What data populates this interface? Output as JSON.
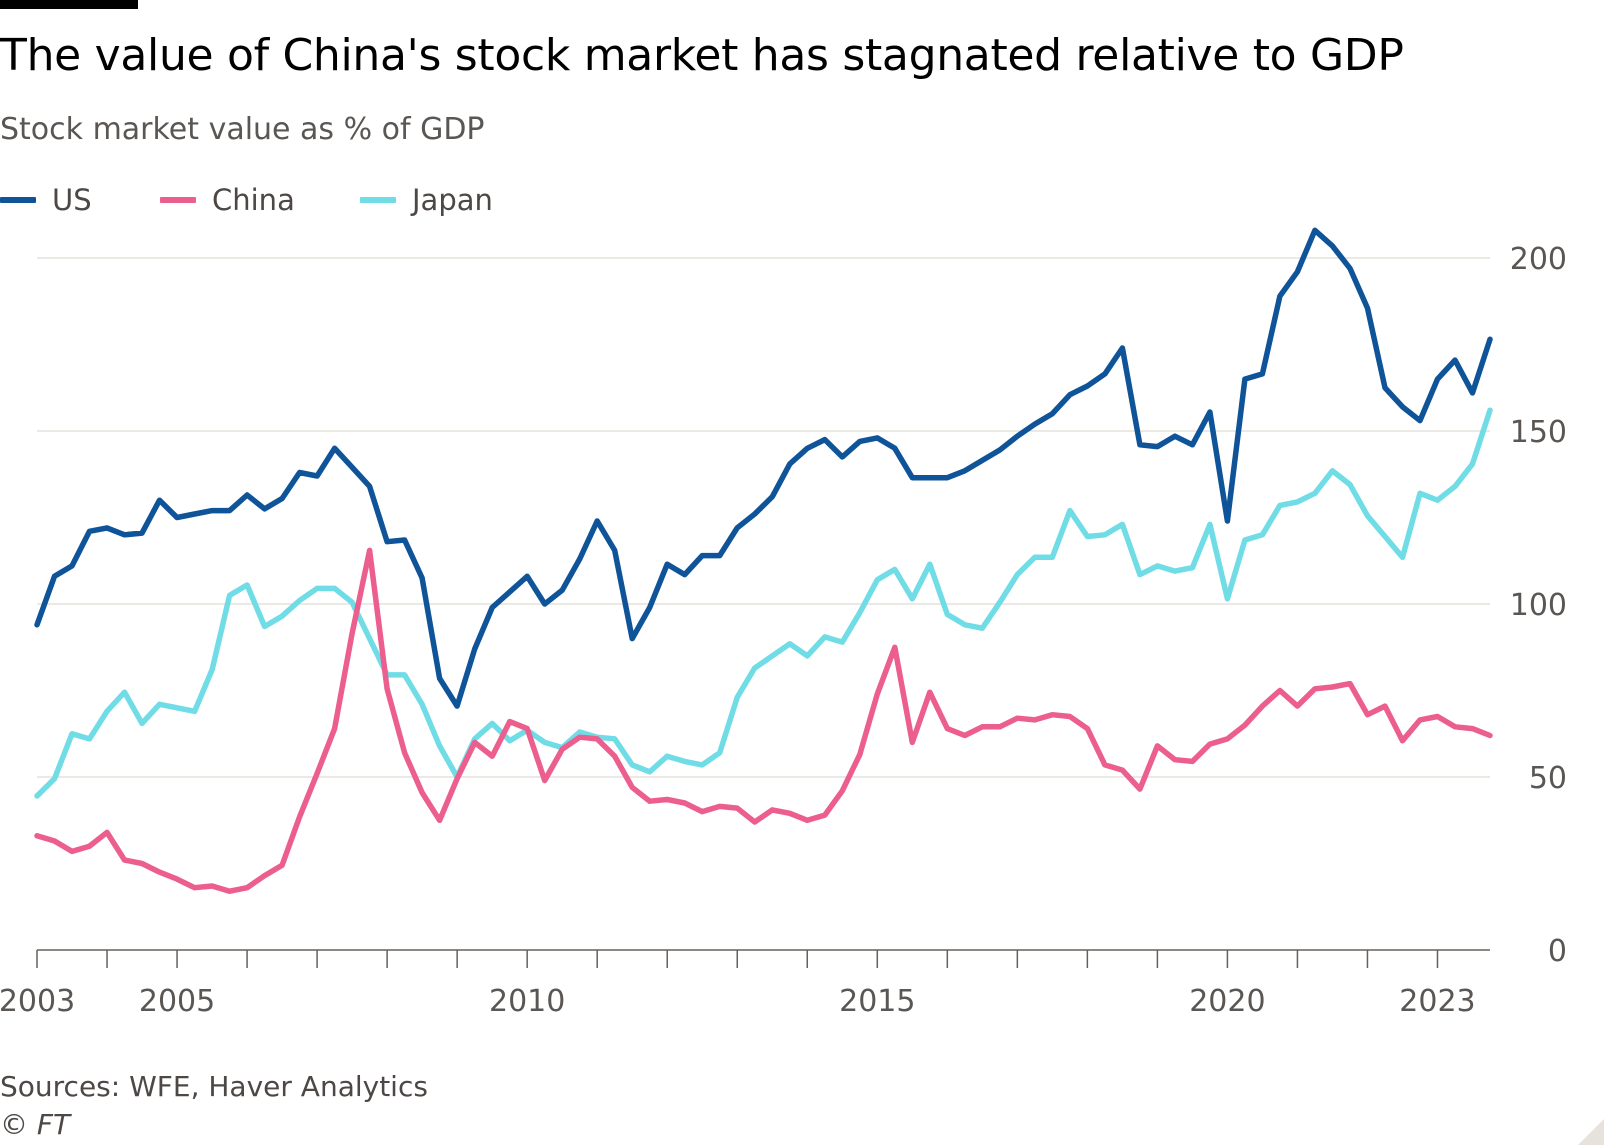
{
  "header": {
    "title": "The value of China's stock market has stagnated relative to GDP",
    "subtitle": "Stock market value as % of GDP"
  },
  "legend": [
    {
      "label": "US",
      "color": "#0f5499"
    },
    {
      "label": "China",
      "color": "#eb5e8d"
    },
    {
      "label": "Japan",
      "color": "#70dce6"
    }
  ],
  "footer": {
    "source": "Sources: WFE, Haver Analytics",
    "copyright": "© FT"
  },
  "chart_data": {
    "type": "line",
    "title": "The value of China's stock market has stagnated relative to GDP",
    "subtitle": "Stock market value as % of GDP",
    "xlabel": "",
    "ylabel": "",
    "x_range": [
      2003,
      2023.75
    ],
    "ylim": [
      0,
      200
    ],
    "y_ticks": [
      0,
      50,
      100,
      150,
      200
    ],
    "x_tick_labels": [
      "2003",
      "2005",
      "2010",
      "2015",
      "2020",
      "2023"
    ],
    "grid": true,
    "y_axis_side": "right",
    "legend_position": "top-left",
    "frequency": "quarterly",
    "start": "2003 Q1",
    "x": [
      "2003 Q1",
      "2003 Q2",
      "2003 Q3",
      "2003 Q4",
      "2004 Q1",
      "2004 Q2",
      "2004 Q3",
      "2004 Q4",
      "2005 Q1",
      "2005 Q2",
      "2005 Q3",
      "2005 Q4",
      "2006 Q1",
      "2006 Q2",
      "2006 Q3",
      "2006 Q4",
      "2007 Q1",
      "2007 Q2",
      "2007 Q3",
      "2007 Q4",
      "2008 Q1",
      "2008 Q2",
      "2008 Q3",
      "2008 Q4",
      "2009 Q1",
      "2009 Q2",
      "2009 Q3",
      "2009 Q4",
      "2010 Q1",
      "2010 Q2",
      "2010 Q3",
      "2010 Q4",
      "2011 Q1",
      "2011 Q2",
      "2011 Q3",
      "2011 Q4",
      "2012 Q1",
      "2012 Q2",
      "2012 Q3",
      "2012 Q4",
      "2013 Q1",
      "2013 Q2",
      "2013 Q3",
      "2013 Q4",
      "2014 Q1",
      "2014 Q2",
      "2014 Q3",
      "2014 Q4",
      "2015 Q1",
      "2015 Q2",
      "2015 Q3",
      "2015 Q4",
      "2016 Q1",
      "2016 Q2",
      "2016 Q3",
      "2016 Q4",
      "2017 Q1",
      "2017 Q2",
      "2017 Q3",
      "2017 Q4",
      "2018 Q1",
      "2018 Q2",
      "2018 Q3",
      "2018 Q4",
      "2019 Q1",
      "2019 Q2",
      "2019 Q3",
      "2019 Q4",
      "2020 Q1",
      "2020 Q2",
      "2020 Q3",
      "2020 Q4",
      "2021 Q1",
      "2021 Q2",
      "2021 Q3",
      "2021 Q4",
      "2022 Q1",
      "2022 Q2",
      "2022 Q3",
      "2022 Q4",
      "2023 Q1",
      "2023 Q2",
      "2023 Q3",
      "2023 Q4"
    ],
    "series": [
      {
        "name": "US",
        "color": "#0f5499",
        "values": [
          94,
          108,
          111,
          121,
          122,
          120,
          120.5,
          130,
          125,
          126,
          127,
          127,
          131.5,
          127.5,
          130.5,
          138,
          137,
          145,
          139.5,
          134,
          118,
          118.5,
          107.5,
          78.5,
          70.5,
          87,
          99,
          103.5,
          108,
          100,
          104,
          113,
          124,
          115.5,
          90,
          99,
          111.5,
          108.5,
          114,
          114,
          122,
          126,
          131,
          140.5,
          145,
          147.5,
          142.5,
          147,
          148,
          145,
          136.5,
          136.5,
          136.5,
          138.5,
          141.5,
          144.5,
          148.5,
          152,
          155,
          160.5,
          163,
          166.5,
          174,
          146,
          145.5,
          148.5,
          146,
          155.5,
          124,
          165,
          166.5,
          189,
          196,
          208,
          203.5,
          197,
          185.5,
          162.5,
          157,
          153,
          165,
          170.5,
          161,
          176.5
        ]
      },
      {
        "name": "China",
        "color": "#eb5e8d",
        "values": [
          33,
          31.5,
          28.5,
          30,
          34,
          26,
          25,
          22.5,
          20.5,
          18,
          18.5,
          17,
          18,
          21.5,
          24.5,
          38.5,
          51,
          64,
          91.5,
          115.5,
          75.5,
          57,
          45.5,
          37.5,
          49.5,
          60,
          56,
          66,
          64,
          49,
          58,
          61.5,
          61,
          56,
          47,
          43,
          43.5,
          42.5,
          40,
          41.5,
          41,
          37,
          40.5,
          39.5,
          37.5,
          39,
          46,
          56.5,
          74,
          87.5,
          60,
          74.5,
          64,
          62,
          64.5,
          64.5,
          67,
          66.5,
          68,
          67.5,
          64,
          53.5,
          52,
          46.5,
          59,
          55,
          54.5,
          59.5,
          61,
          65,
          70.5,
          75,
          70.5,
          75.5,
          76,
          77,
          68,
          70.5,
          60.5,
          66.5,
          67.5,
          64.5,
          64,
          62
        ]
      },
      {
        "name": "Japan",
        "color": "#70dce6",
        "values": [
          44.5,
          49.5,
          62.5,
          61,
          69,
          74.5,
          65.5,
          71,
          70,
          69,
          81,
          102.5,
          105.5,
          93.5,
          96.5,
          101,
          104.5,
          104.5,
          100.5,
          90,
          79.5,
          79.5,
          71,
          59,
          50,
          61,
          65.5,
          60.5,
          63.5,
          60,
          58.5,
          63,
          61.5,
          61,
          53.5,
          51.5,
          56,
          54.5,
          53.5,
          57,
          73,
          81.5,
          85,
          88.5,
          85,
          90.5,
          89,
          97.5,
          107,
          110,
          101.5,
          111.5,
          97,
          94,
          93,
          100.5,
          108.5,
          113.5,
          113.5,
          127,
          119.5,
          120,
          123,
          108.5,
          111,
          109.5,
          110.5,
          123,
          101.5,
          118.5,
          120,
          128.5,
          129.5,
          132,
          138.5,
          134.5,
          125.5,
          119.5,
          113.5,
          132,
          130,
          134,
          140.5,
          156
        ]
      }
    ]
  }
}
